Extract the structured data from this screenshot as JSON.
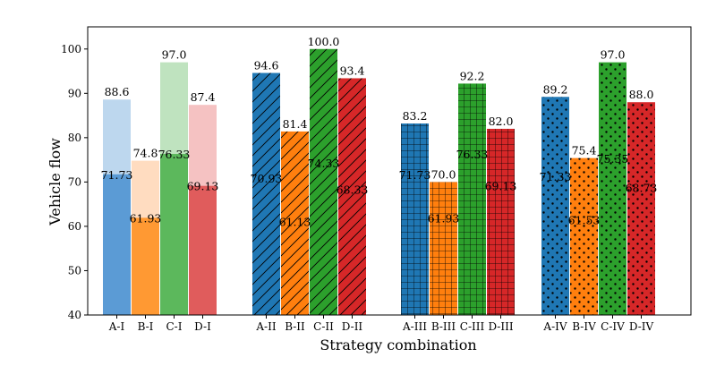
{
  "chart_data": {
    "type": "bar",
    "title": "",
    "xlabel": "Strategy combination",
    "ylabel": "Vehicle flow",
    "ylim": [
      40,
      105
    ],
    "yticks": [
      40,
      50,
      60,
      70,
      80,
      90,
      100
    ],
    "grid": false,
    "legend": "none",
    "colors": {
      "A": "#1f77b4",
      "B": "#ff7f0e",
      "C": "#2ca02c",
      "D": "#d62728",
      "A_light": "#bdd7ee",
      "B_light": "#ffdcc0",
      "C_light": "#bfe3bf",
      "D_light": "#f5c2c2",
      "A_dark": "#5b9bd5",
      "B_dark": "#ff9933",
      "C_dark": "#5cb85c",
      "D_dark": "#e05c5c"
    },
    "groups": [
      {
        "name": "I",
        "pattern": "stacked",
        "bars": [
          {
            "label": "A-I",
            "color_key": "A",
            "total": 88.6,
            "total_label": "88.6",
            "inner": 71.73,
            "inner_label": "71.73"
          },
          {
            "label": "B-I",
            "color_key": "B",
            "total": 74.8,
            "total_label": "74.8",
            "inner": 61.93,
            "inner_label": "61.93"
          },
          {
            "label": "C-I",
            "color_key": "C",
            "total": 97.0,
            "total_label": "97.0",
            "inner": 76.33,
            "inner_label": "76.33"
          },
          {
            "label": "D-I",
            "color_key": "D",
            "total": 87.4,
            "total_label": "87.4",
            "inner": 69.13,
            "inner_label": "69.13"
          }
        ]
      },
      {
        "name": "II",
        "pattern": "diagonal",
        "bars": [
          {
            "label": "A-II",
            "color_key": "A",
            "total": 94.6,
            "total_label": "94.6",
            "inner": 70.93,
            "inner_label": "70.93"
          },
          {
            "label": "B-II",
            "color_key": "B",
            "total": 81.4,
            "total_label": "81.4",
            "inner": 61.13,
            "inner_label": "61.13"
          },
          {
            "label": "C-II",
            "color_key": "C",
            "total": 100.0,
            "total_label": "100.0",
            "inner": 74.33,
            "inner_label": "74.33"
          },
          {
            "label": "D-II",
            "color_key": "D",
            "total": 93.4,
            "total_label": "93.4",
            "inner": 68.33,
            "inner_label": "68.33"
          }
        ]
      },
      {
        "name": "III",
        "pattern": "grid",
        "bars": [
          {
            "label": "A-III",
            "color_key": "A",
            "total": 83.2,
            "total_label": "83.2",
            "inner": 71.73,
            "inner_label": "71.73"
          },
          {
            "label": "B-III",
            "color_key": "B",
            "total": 70.0,
            "total_label": "70.0",
            "inner": 61.93,
            "inner_label": "61.93"
          },
          {
            "label": "C-III",
            "color_key": "C",
            "total": 92.2,
            "total_label": "92.2",
            "inner": 76.33,
            "inner_label": "76.33"
          },
          {
            "label": "D-III",
            "color_key": "D",
            "total": 82.0,
            "total_label": "82.0",
            "inner": 69.13,
            "inner_label": "69.13"
          }
        ]
      },
      {
        "name": "IV",
        "pattern": "dots",
        "bars": [
          {
            "label": "A-IV",
            "color_key": "A",
            "total": 89.2,
            "total_label": "89.2",
            "inner": 71.33,
            "inner_label": "71.33"
          },
          {
            "label": "B-IV",
            "color_key": "B",
            "total": 75.4,
            "total_label": "75.4",
            "inner": 61.53,
            "inner_label": "61.53"
          },
          {
            "label": "C-IV",
            "color_key": "C",
            "total": 97.0,
            "total_label": "97.0",
            "inner": 75.35,
            "inner_label": "75.35"
          },
          {
            "label": "D-IV",
            "color_key": "D",
            "total": 88.0,
            "total_label": "88.0",
            "inner": 68.73,
            "inner_label": "68.73"
          }
        ]
      }
    ]
  }
}
